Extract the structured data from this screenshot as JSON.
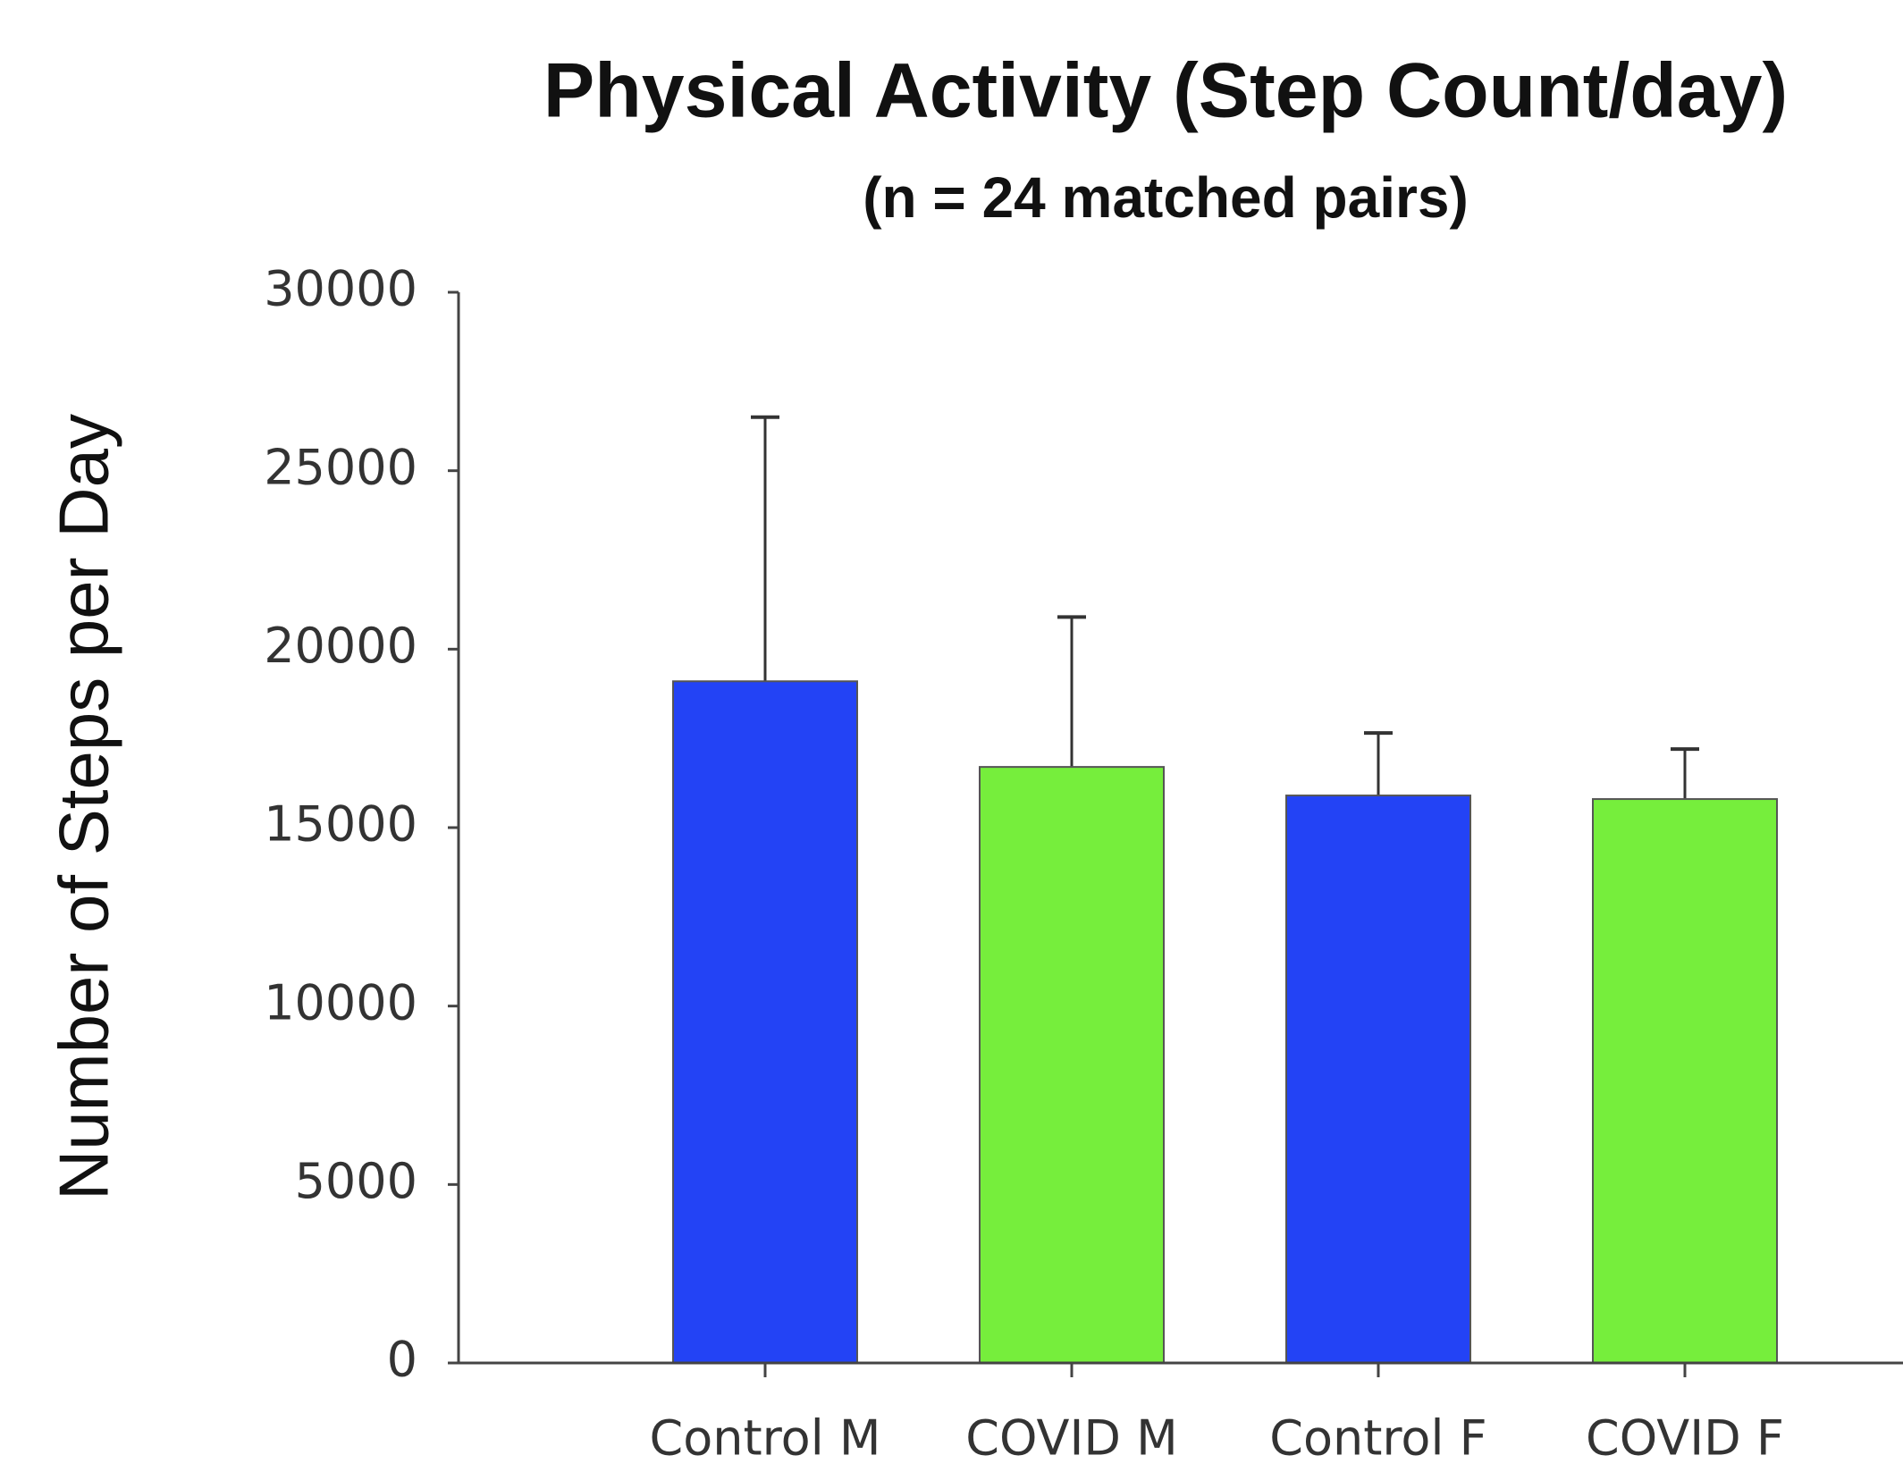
{
  "chart_data": {
    "type": "bar",
    "title": "Physical Activity (Step Count/day)",
    "subtitle": "(n =  24 matched pairs)",
    "y_label": "Number of Steps per Day",
    "categories": [
      "Control M",
      "COVID M",
      "Control F",
      "COVID F"
    ],
    "values": [
      19100,
      16700,
      15900,
      15800
    ],
    "errors": [
      7400,
      4200,
      1750,
      1400
    ],
    "colors": [
      "#2343f5",
      "#76ee3c",
      "#2343f5",
      "#76ee3c"
    ],
    "ylim": [
      0,
      30000
    ],
    "yticks": [
      0,
      5000,
      10000,
      15000,
      20000,
      25000,
      30000
    ],
    "grid": false
  }
}
